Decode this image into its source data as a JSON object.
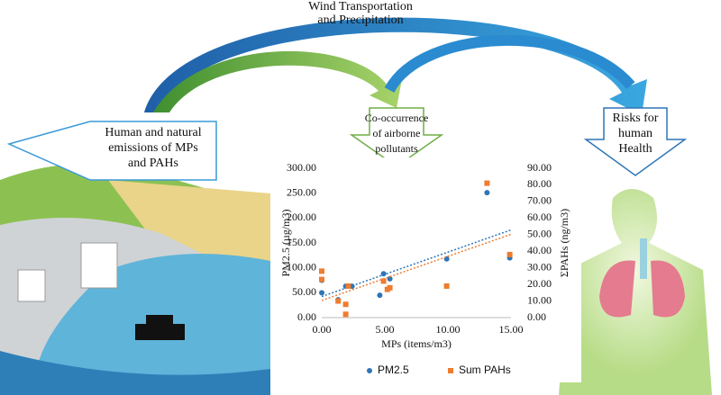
{
  "wind_label": [
    "Wind Transportation",
    "and Precipitation"
  ],
  "emissions_label": [
    "Human and natural",
    "emissions of MPs",
    "and PAHs"
  ],
  "cooccurrence_label": [
    "Co-occurrence",
    "of airborne",
    "pollutants"
  ],
  "risk_label": [
    "Risks for",
    "human",
    "Health"
  ],
  "chart_data": {
    "type": "scatter",
    "x_label": "MPs (items/m3)",
    "y_label": "PM2.5 (µg/m3)",
    "y2_label": "ΣPAHs (ng/m3)",
    "xlim": [
      0,
      15
    ],
    "ylim": [
      0,
      300
    ],
    "y2lim": [
      0,
      90
    ],
    "xticks": [
      {
        "value": 0,
        "label": "0.00"
      },
      {
        "value": 5,
        "label": "5.00"
      },
      {
        "value": 10,
        "label": "10.00"
      },
      {
        "value": 15,
        "label": "15.00"
      }
    ],
    "yticks": [
      {
        "value": 0,
        "label": "0.00"
      },
      {
        "value": 50,
        "label": "50.00"
      },
      {
        "value": 100,
        "label": "100.00"
      },
      {
        "value": 150,
        "label": "150.00"
      },
      {
        "value": 200,
        "label": "200.00"
      },
      {
        "value": 250,
        "label": "250.00"
      },
      {
        "value": 300,
        "label": "300.00"
      }
    ],
    "y2ticks": [
      {
        "value": 0,
        "label": "0.00"
      },
      {
        "value": 10,
        "label": "10.00"
      },
      {
        "value": 20,
        "label": "20.00"
      },
      {
        "value": 30,
        "label": "30.00"
      },
      {
        "value": 40,
        "label": "40.00"
      },
      {
        "value": 50,
        "label": "50.00"
      },
      {
        "value": 60,
        "label": "60.00"
      },
      {
        "value": 70,
        "label": "70.00"
      },
      {
        "value": 80,
        "label": "80.00"
      },
      {
        "value": 90,
        "label": "90.00"
      }
    ],
    "trendline": true,
    "legend": "bottom",
    "series": [
      {
        "name": "PM2.5",
        "color": "#2e75b6",
        "x": [
          0,
          0,
          1.3,
          1.9,
          2.4,
          4.6,
          4.9,
          5.4,
          9.9,
          13.1,
          14.9
        ],
        "values": [
          50,
          75,
          36,
          63,
          63,
          45,
          88,
          78,
          118,
          251,
          120
        ]
      },
      {
        "name": "Sum PAHs",
        "color": "#ed7d31",
        "axis": "y2",
        "x": [
          0,
          0,
          1.3,
          1.9,
          1.9,
          2.1,
          4.9,
          5.2,
          5.4,
          9.9,
          13.1,
          14.9
        ],
        "values": [
          28,
          23,
          10,
          8,
          2,
          19,
          22,
          17,
          18,
          19,
          81,
          38
        ]
      }
    ]
  }
}
